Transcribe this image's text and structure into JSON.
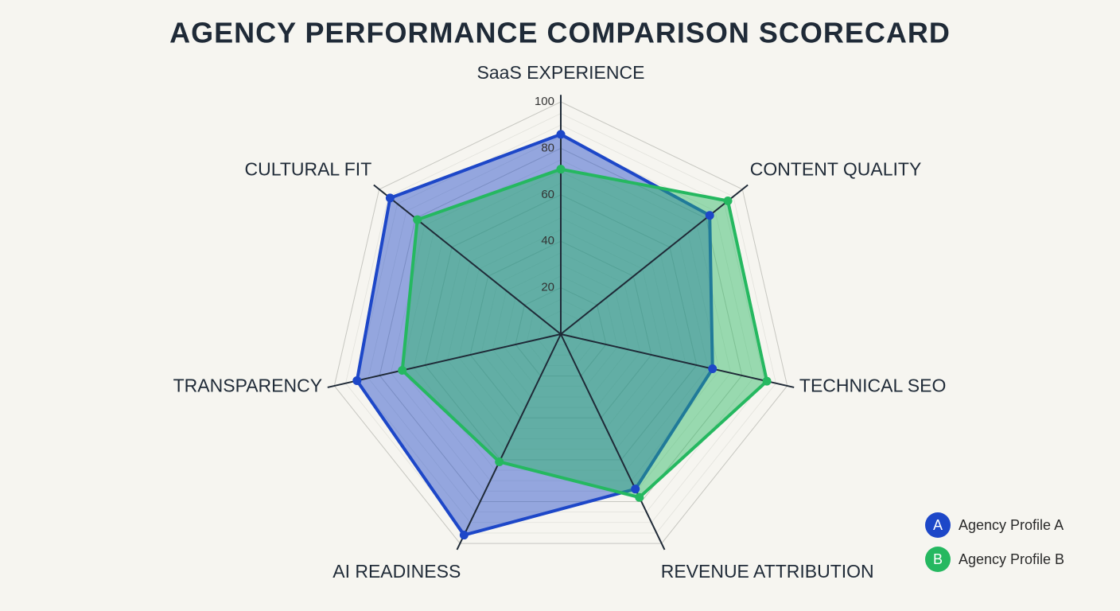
{
  "chart_data": {
    "type": "radar",
    "title": "AGENCY PERFORMANCE COMPARISON SCORECARD",
    "categories": [
      "SaaS EXPERIENCE",
      "CONTENT QUALITY",
      "TECHNICAL SEO",
      "REVENUE ATTRIBUTION",
      "AI READINESS",
      "TRANSPARENCY",
      "CULTURAL FIT"
    ],
    "rlim": [
      0,
      100
    ],
    "rticks": [
      20,
      40,
      60,
      80,
      100
    ],
    "series": [
      {
        "name": "Agency Profile A",
        "badge": "A",
        "color": "#1d47c8",
        "values": [
          86,
          82,
          67,
          74,
          96,
          90,
          94
        ]
      },
      {
        "name": "Agency Profile B",
        "badge": "B",
        "color": "#25b860",
        "values": [
          71,
          92,
          91,
          78,
          61,
          70,
          79
        ]
      }
    ],
    "legend": "bottom-right"
  }
}
